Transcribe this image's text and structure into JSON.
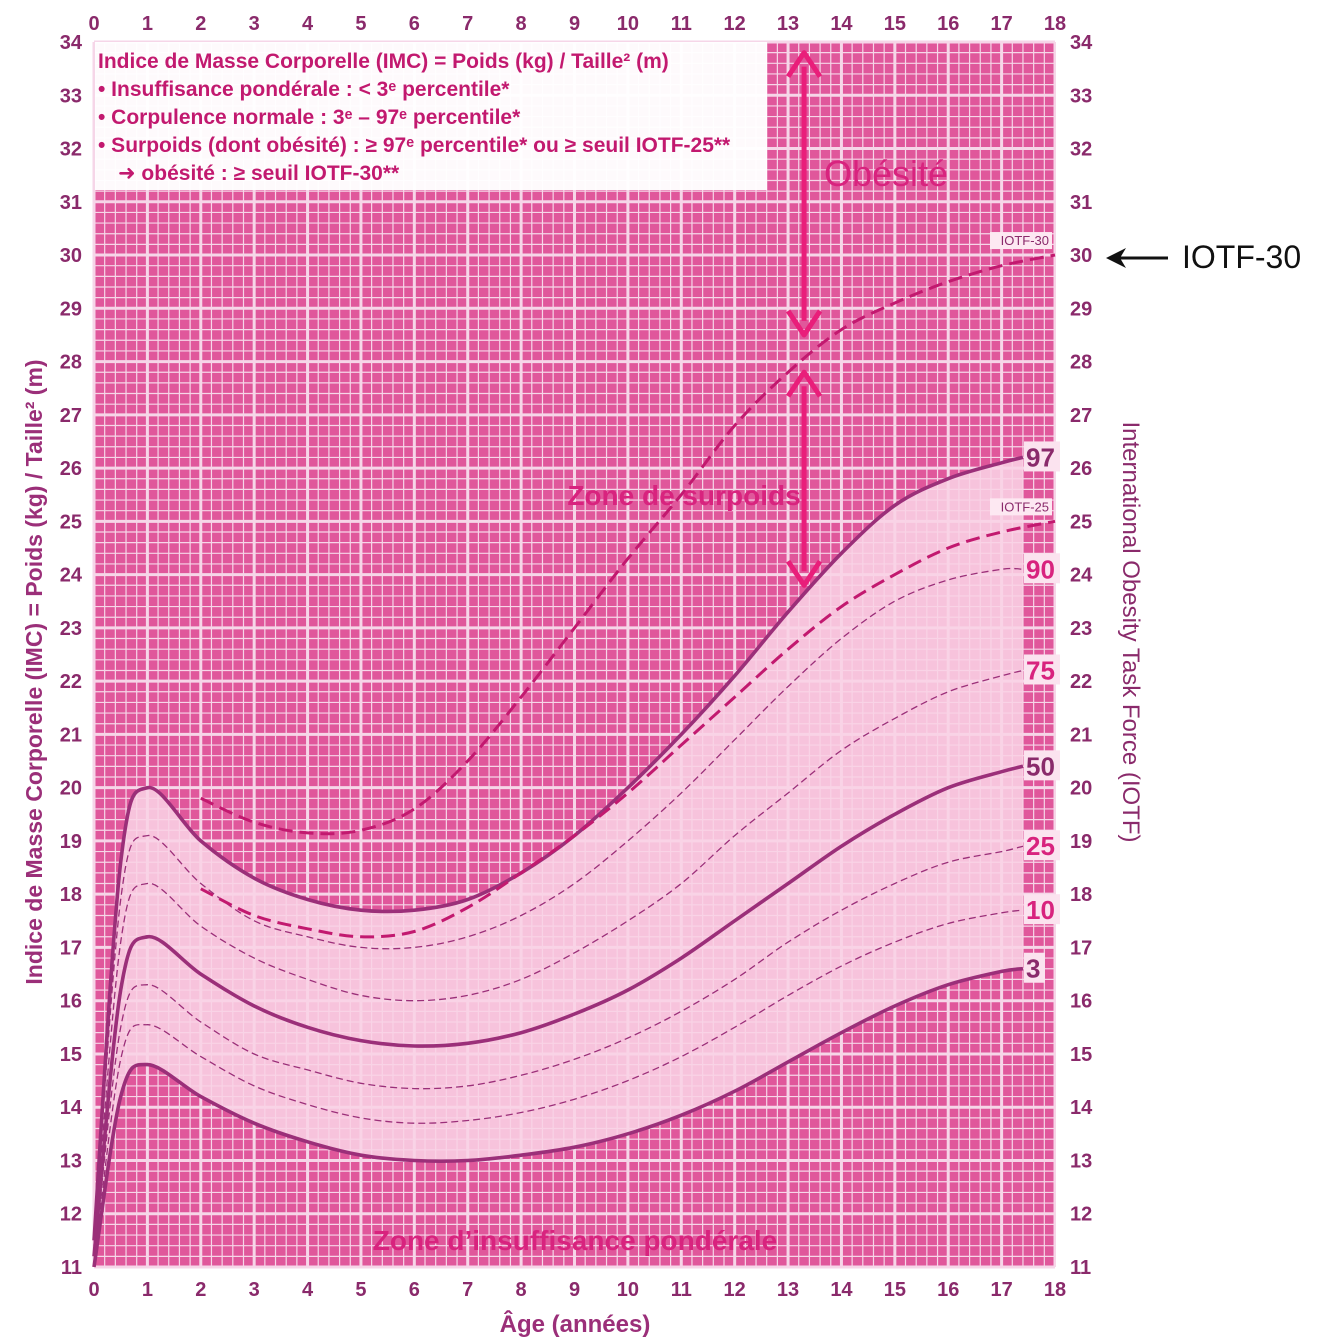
{
  "chart_data": {
    "type": "line",
    "xlabel": "Âge (années)",
    "ylabel": "Indice de Masse Corporelle (IMC) = Poids (kg) / Taille² (m)",
    "y2label": "International Obesity Task Force (IOTF)",
    "xlim": [
      0,
      18
    ],
    "ylim": [
      11,
      34
    ],
    "x_ticks": [
      "0",
      "1",
      "2",
      "3",
      "4",
      "5",
      "6",
      "7",
      "8",
      "9",
      "10",
      "11",
      "12",
      "13",
      "14",
      "15",
      "16",
      "17",
      "18"
    ],
    "y_ticks": [
      "11",
      "12",
      "13",
      "14",
      "15",
      "16",
      "17",
      "18",
      "19",
      "20",
      "21",
      "22",
      "23",
      "24",
      "25",
      "26",
      "27",
      "28",
      "29",
      "30",
      "31",
      "32",
      "33",
      "34"
    ],
    "grid": true,
    "legend_box": {
      "line1": "Indice de Masse Corporelle (IMC) = Poids (kg) / Taille² (m)",
      "line2": "• Insuffisance pondérale : < 3ᵉ percentile*",
      "line3": "• Corpulence normale : 3ᵉ – 97ᵉ percentile*",
      "line4": "• Surpoids (dont obésité) : ≥ 97ᵉ percentile* ou ≥ seuil IOTF-25**",
      "line5": "➜ obésité : ≥ seuil IOTF-30**"
    },
    "zone_labels": {
      "obesity": "Obésité",
      "overweight": "Zone de surpoids",
      "underweight": "Zone d’insuffisance pondérale"
    },
    "annotation": "IOTF-30",
    "series": [
      {
        "name": "97",
        "style": "solid",
        "x": [
          0,
          0.5,
          1,
          2,
          3,
          4,
          5,
          6,
          7,
          8,
          9,
          10,
          11,
          12,
          13,
          14,
          15,
          16,
          17,
          17.4
        ],
        "y": [
          11.5,
          18.6,
          20.0,
          19.0,
          18.3,
          17.9,
          17.7,
          17.7,
          17.9,
          18.4,
          19.1,
          20.0,
          21.0,
          22.1,
          23.3,
          24.4,
          25.3,
          25.8,
          26.1,
          26.2
        ]
      },
      {
        "name": "90",
        "style": "dash-thin",
        "x": [
          0,
          0.5,
          1,
          2,
          3,
          4,
          5,
          6,
          7,
          8,
          9,
          10,
          11,
          12,
          13,
          14,
          15,
          16,
          17,
          17.4
        ],
        "y": [
          11.4,
          17.9,
          19.1,
          18.2,
          17.5,
          17.2,
          17.0,
          17.0,
          17.2,
          17.6,
          18.2,
          19.0,
          19.9,
          20.9,
          21.9,
          22.8,
          23.5,
          23.9,
          24.1,
          24.1
        ]
      },
      {
        "name": "75",
        "style": "dash-thin",
        "x": [
          0,
          0.5,
          1,
          2,
          3,
          4,
          5,
          6,
          7,
          8,
          9,
          10,
          11,
          12,
          13,
          14,
          15,
          16,
          17,
          17.4
        ],
        "y": [
          11.3,
          17.1,
          18.2,
          17.4,
          16.8,
          16.4,
          16.1,
          16.0,
          16.1,
          16.4,
          16.9,
          17.5,
          18.2,
          19.1,
          19.9,
          20.7,
          21.3,
          21.8,
          22.1,
          22.2
        ]
      },
      {
        "name": "50",
        "style": "solid",
        "x": [
          0,
          0.5,
          1,
          2,
          3,
          4,
          5,
          6,
          7,
          8,
          9,
          10,
          11,
          12,
          13,
          14,
          15,
          16,
          17,
          17.4
        ],
        "y": [
          11.2,
          16.2,
          17.2,
          16.5,
          15.9,
          15.5,
          15.25,
          15.15,
          15.2,
          15.4,
          15.75,
          16.2,
          16.8,
          17.5,
          18.2,
          18.9,
          19.5,
          20.0,
          20.3,
          20.4
        ]
      },
      {
        "name": "25",
        "style": "dash-thin",
        "x": [
          0,
          0.5,
          1,
          2,
          3,
          4,
          5,
          6,
          7,
          8,
          9,
          10,
          11,
          12,
          13,
          14,
          15,
          16,
          17,
          17.4
        ],
        "y": [
          11.1,
          15.5,
          16.3,
          15.6,
          15.0,
          14.7,
          14.45,
          14.35,
          14.4,
          14.6,
          14.9,
          15.3,
          15.8,
          16.4,
          17.1,
          17.7,
          18.2,
          18.6,
          18.8,
          18.9
        ]
      },
      {
        "name": "10",
        "style": "dash-thin",
        "x": [
          0,
          0.5,
          1,
          2,
          3,
          4,
          5,
          6,
          7,
          8,
          9,
          10,
          11,
          12,
          13,
          14,
          15,
          16,
          17,
          17.4
        ],
        "y": [
          11.05,
          14.9,
          15.55,
          14.95,
          14.4,
          14.05,
          13.8,
          13.7,
          13.75,
          13.9,
          14.15,
          14.5,
          14.95,
          15.5,
          16.1,
          16.65,
          17.1,
          17.45,
          17.65,
          17.7
        ]
      },
      {
        "name": "3",
        "style": "solid",
        "x": [
          0,
          0.5,
          1,
          2,
          3,
          4,
          5,
          6,
          7,
          8,
          9,
          10,
          11,
          12,
          13,
          14,
          15,
          16,
          17,
          17.4
        ],
        "y": [
          11.0,
          14.2,
          14.8,
          14.2,
          13.7,
          13.35,
          13.1,
          13.0,
          13.0,
          13.1,
          13.25,
          13.5,
          13.85,
          14.3,
          14.85,
          15.4,
          15.9,
          16.3,
          16.55,
          16.6
        ]
      },
      {
        "name": "IOTF-30",
        "style": "dash-thick",
        "x": [
          2,
          3,
          4,
          5,
          6,
          7,
          8,
          9,
          10,
          11,
          12,
          13,
          14,
          15,
          16,
          17,
          18
        ],
        "y": [
          19.8,
          19.35,
          19.15,
          19.2,
          19.6,
          20.5,
          21.7,
          23.0,
          24.3,
          25.5,
          26.8,
          27.8,
          28.6,
          29.1,
          29.5,
          29.8,
          30.0
        ]
      },
      {
        "name": "IOTF-25",
        "style": "dash-thick",
        "x": [
          2,
          3,
          4,
          5,
          6,
          7,
          8,
          9,
          10,
          11,
          12,
          13,
          14,
          15,
          16,
          17,
          18
        ],
        "y": [
          18.1,
          17.6,
          17.35,
          17.2,
          17.3,
          17.75,
          18.4,
          19.1,
          19.9,
          20.8,
          21.7,
          22.6,
          23.4,
          24.0,
          24.5,
          24.8,
          25.0
        ]
      }
    ],
    "end_labels": [
      {
        "text": "97",
        "series": "97"
      },
      {
        "text": "90",
        "series": "90"
      },
      {
        "text": "75",
        "series": "75"
      },
      {
        "text": "50",
        "series": "50"
      },
      {
        "text": "25",
        "series": "25"
      },
      {
        "text": "10",
        "series": "10"
      },
      {
        "text": "3",
        "series": "3"
      }
    ],
    "curve_labels": [
      {
        "text": "IOTF-30",
        "series": "IOTF-30"
      },
      {
        "text": "IOTF-25",
        "series": "IOTF-25"
      }
    ],
    "colors": {
      "background": "#e0579b",
      "grid": "#f6d6e8",
      "band_fill": "#f9d3e5",
      "curve": "#9b2f79",
      "dash": "#c2196f",
      "arrow": "#e91e7a",
      "legend_text": "#c2196f"
    }
  }
}
